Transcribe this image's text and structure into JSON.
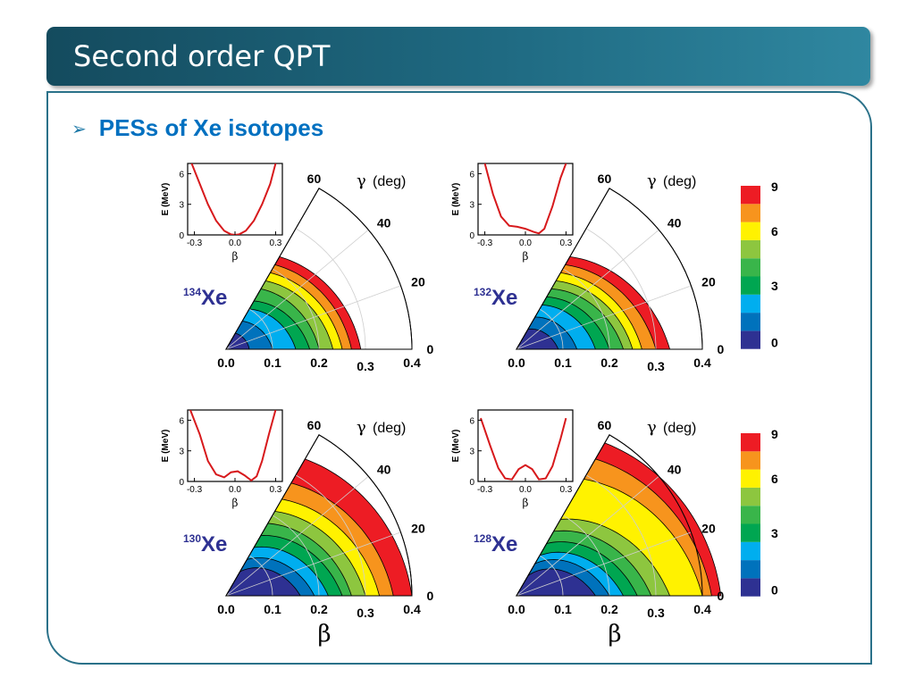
{
  "slide": {
    "title": "Second order QPT",
    "bullet": "PESs of Xe isotopes",
    "bullet_icon": "arrowhead-bullet-icon"
  },
  "colors": {
    "title_bar": "#1f6a82",
    "bullet_text": "#0070c0",
    "isotope_label": "#2e3192",
    "band_colors": [
      "#2e3192",
      "#0072bc",
      "#00aeef",
      "#00a651",
      "#39b54a",
      "#8dc63f",
      "#fff200",
      "#f7941d",
      "#ed1c24",
      "#ffffff"
    ]
  },
  "chart_data": [
    {
      "type": "heatmap",
      "panel": "pes-134",
      "isotope": {
        "mass": "134",
        "symbol": "Xe"
      },
      "axis_gamma_label": "(deg)",
      "gamma_ticks": [
        "0",
        "20",
        "40",
        "60"
      ],
      "beta_ticks": [
        "0.0",
        "0.1",
        "0.2",
        "0.3",
        "0.4"
      ],
      "beta_range": [
        0,
        0.4
      ],
      "gamma_range": [
        0,
        60
      ],
      "contour_levels_MeV": [
        0,
        1,
        2,
        3,
        4,
        5,
        6,
        7,
        8,
        9
      ],
      "contour_beta_at_gamma0": [
        0.05,
        0.1,
        0.15,
        0.18,
        0.2,
        0.23,
        0.25,
        0.27,
        0.29
      ],
      "contour_beta_at_gamma60": [
        0.04,
        0.07,
        0.1,
        0.12,
        0.15,
        0.17,
        0.19,
        0.21,
        0.23
      ],
      "inset": {
        "ylabel": "E (MeV)",
        "xlabel": "β",
        "x_ticks": [
          "-0.3",
          "0.0",
          "0.3"
        ],
        "y_ticks": [
          "0",
          "3",
          "6"
        ],
        "xlim": [
          -0.35,
          0.35
        ],
        "ylim": [
          0,
          7
        ],
        "curve_x": [
          -0.32,
          -0.26,
          -0.2,
          -0.14,
          -0.08,
          -0.03,
          0.0,
          0.03,
          0.08,
          0.14,
          0.2,
          0.26,
          0.3
        ],
        "curve_y": [
          7.0,
          5.0,
          3.0,
          1.4,
          0.4,
          0.05,
          0.0,
          0.05,
          0.4,
          1.4,
          3.0,
          5.0,
          7.0
        ]
      }
    },
    {
      "type": "heatmap",
      "panel": "pes-132",
      "isotope": {
        "mass": "132",
        "symbol": "Xe"
      },
      "axis_gamma_label": "(deg)",
      "gamma_ticks": [
        "0",
        "20",
        "40",
        "60"
      ],
      "beta_ticks": [
        "0.0",
        "0.1",
        "0.2",
        "0.3",
        "0.4"
      ],
      "beta_range": [
        0,
        0.4
      ],
      "gamma_range": [
        0,
        60
      ],
      "contour_levels_MeV": [
        0,
        1,
        2,
        3,
        4,
        5,
        6,
        7,
        8,
        9
      ],
      "contour_beta_at_gamma0": [
        0.09,
        0.13,
        0.17,
        0.2,
        0.23,
        0.25,
        0.27,
        0.3,
        0.33
      ],
      "contour_beta_at_gamma60": [
        0.05,
        0.08,
        0.11,
        0.13,
        0.15,
        0.17,
        0.19,
        0.21,
        0.23
      ],
      "inset": {
        "ylabel": "E (MeV)",
        "xlabel": "β",
        "x_ticks": [
          "-0.3",
          "0.0",
          "0.3"
        ],
        "y_ticks": [
          "0",
          "3",
          "6"
        ],
        "xlim": [
          -0.35,
          0.35
        ],
        "ylim": [
          0,
          7
        ],
        "curve_x": [
          -0.3,
          -0.24,
          -0.18,
          -0.12,
          -0.06,
          0.0,
          0.06,
          0.1,
          0.14,
          0.2,
          0.26,
          0.3
        ],
        "curve_y": [
          7.0,
          4.0,
          1.8,
          0.9,
          0.8,
          0.6,
          0.3,
          0.15,
          0.6,
          2.8,
          5.6,
          7.0
        ]
      }
    },
    {
      "type": "heatmap",
      "panel": "pes-130",
      "isotope": {
        "mass": "130",
        "symbol": "Xe"
      },
      "axis_gamma_label": "(deg)",
      "gamma_ticks": [
        "0",
        "20",
        "40",
        "60"
      ],
      "beta_ticks": [
        "0.0",
        "0.1",
        "0.2",
        "0.3",
        "0.4"
      ],
      "beta_range": [
        0,
        0.4
      ],
      "gamma_range": [
        0,
        60
      ],
      "contour_levels_MeV": [
        0,
        1,
        2,
        3,
        4,
        5,
        6,
        7,
        8,
        9
      ],
      "contour_beta_at_gamma0": [
        0.16,
        0.19,
        0.22,
        0.25,
        0.27,
        0.3,
        0.33,
        0.36,
        0.4
      ],
      "contour_beta_at_gamma60": [
        0.06,
        0.09,
        0.12,
        0.15,
        0.18,
        0.21,
        0.24,
        0.28,
        0.34
      ],
      "inset": {
        "ylabel": "E (MeV)",
        "xlabel": "β",
        "x_ticks": [
          "-0.3",
          "0.0",
          "0.3"
        ],
        "y_ticks": [
          "0",
          "3",
          "6"
        ],
        "xlim": [
          -0.35,
          0.35
        ],
        "ylim": [
          0,
          7
        ],
        "curve_x": [
          -0.33,
          -0.26,
          -0.2,
          -0.14,
          -0.08,
          -0.03,
          0.02,
          0.07,
          0.12,
          0.16,
          0.2,
          0.25,
          0.3
        ],
        "curve_y": [
          7.0,
          4.6,
          2.0,
          0.7,
          0.4,
          0.9,
          1.0,
          0.6,
          0.1,
          0.5,
          2.0,
          4.6,
          7.0
        ]
      }
    },
    {
      "type": "heatmap",
      "panel": "pes-128",
      "isotope": {
        "mass": "128",
        "symbol": "Xe"
      },
      "axis_gamma_label": "(deg)",
      "gamma_ticks": [
        "0",
        "20",
        "40",
        "60"
      ],
      "beta_ticks": [
        "0.0",
        "0.1",
        "0.2",
        "0.3",
        "0.4"
      ],
      "beta_range": [
        0,
        0.4
      ],
      "gamma_range": [
        0,
        60
      ],
      "contour_levels_MeV": [
        0,
        1,
        2,
        3,
        4,
        5,
        6,
        7,
        8,
        9
      ],
      "contour_beta_at_gamma0": [
        0.17,
        0.2,
        0.23,
        0.26,
        0.29,
        0.33,
        0.4,
        0.42,
        0.44
      ],
      "contour_beta_at_gamma60": [
        0.05,
        0.08,
        0.1,
        0.13,
        0.16,
        0.19,
        0.29,
        0.34,
        0.38
      ],
      "inset": {
        "ylabel": "E (MeV)",
        "xlabel": "β",
        "x_ticks": [
          "-0.3",
          "0.0",
          "0.3"
        ],
        "y_ticks": [
          "0",
          "3",
          "6"
        ],
        "xlim": [
          -0.35,
          0.35
        ],
        "ylim": [
          0,
          7
        ],
        "curve_x": [
          -0.33,
          -0.26,
          -0.2,
          -0.15,
          -0.1,
          -0.05,
          0.0,
          0.05,
          0.1,
          0.15,
          0.2,
          0.26,
          0.3
        ],
        "curve_y": [
          6.2,
          3.5,
          1.3,
          0.3,
          0.2,
          1.2,
          1.6,
          1.2,
          0.2,
          0.3,
          1.5,
          4.2,
          6.2
        ]
      }
    }
  ],
  "colorbars": [
    {
      "ticks": [
        "0",
        "3",
        "6",
        "9"
      ],
      "levels": [
        0,
        9
      ]
    },
    {
      "ticks": [
        "0",
        "3",
        "6",
        "9"
      ],
      "levels": [
        0,
        9
      ]
    }
  ],
  "beta_axis_titles": [
    "β",
    "β"
  ]
}
